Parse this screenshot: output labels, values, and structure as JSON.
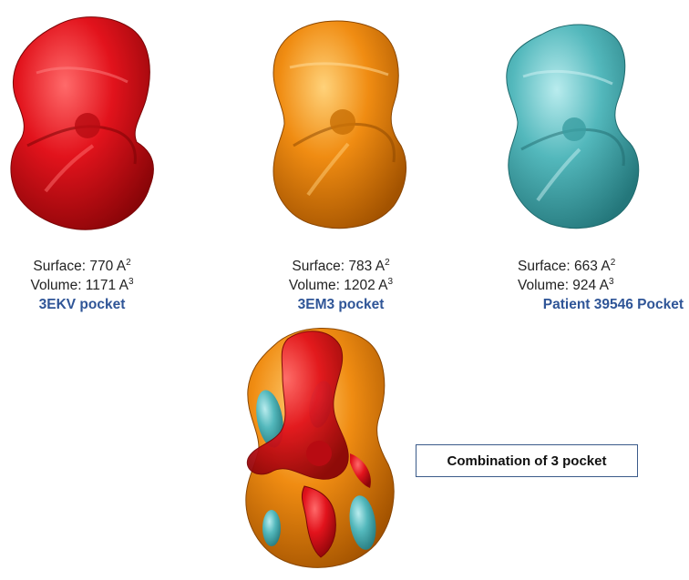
{
  "colors": {
    "red_pocket": "#e2131c",
    "orange_pocket": "#f08c12",
    "cyan_pocket": "#53b8bc",
    "label_blue": "#2f5597",
    "box_border": "#3b5b8a"
  },
  "pockets": [
    {
      "surface_label": "Surface: 770 A",
      "surface_exp": "2",
      "volume_label": "Volume: 1171 A",
      "volume_exp": "3",
      "name": "3EKV pocket"
    },
    {
      "surface_label": "Surface: 783 A",
      "surface_exp": "2",
      "volume_label": "Volume: 1202 A",
      "volume_exp": "3",
      "name": "3EM3 pocket"
    },
    {
      "surface_label": "Surface: 663 A",
      "surface_exp": "2",
      "volume_label": "Volume: 924 A",
      "volume_exp": "3",
      "name": "Patient 39546 Pocket"
    }
  ],
  "combination_label": "Combination of 3 pocket"
}
